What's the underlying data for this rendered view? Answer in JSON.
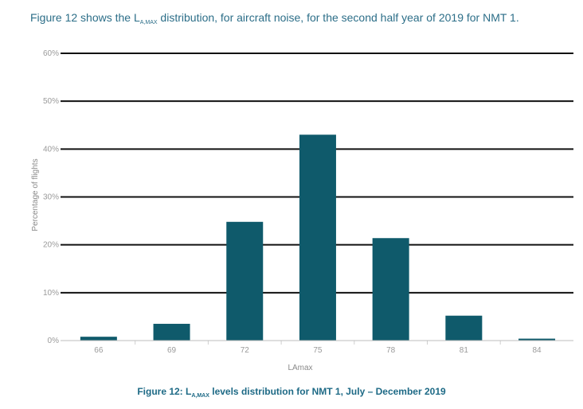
{
  "intro": {
    "before": "Figure 12 shows the L",
    "sub": "A,MAX",
    "after": " distribution, for aircraft noise, for the second half year of 2019 for NMT 1."
  },
  "caption": {
    "before": "Figure 12: L",
    "sub": "A,MAX",
    "after": " levels distribution for NMT 1, July – December 2019"
  },
  "chart_data": {
    "type": "bar",
    "categories": [
      "66",
      "69",
      "72",
      "75",
      "78",
      "81",
      "84"
    ],
    "values": [
      0.8,
      3.5,
      24.8,
      43.0,
      21.4,
      5.2,
      0.4
    ],
    "xlabel": "LAmax",
    "ylabel": "Percentage of flights",
    "ylim": [
      0,
      60
    ],
    "yticks": [
      "0%",
      "10%",
      "20%",
      "30%",
      "40%",
      "50%",
      "60%"
    ],
    "ytick_values": [
      0,
      10,
      20,
      30,
      40,
      50,
      60
    ],
    "grid": true,
    "bar_color": "#0f5a6b",
    "grid_color": "#111111"
  }
}
